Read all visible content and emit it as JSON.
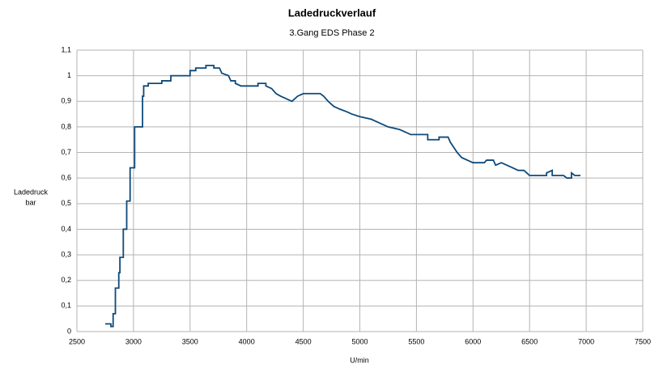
{
  "chart_data": {
    "type": "line",
    "title": "Ladedruckverlauf",
    "subtitle": "3.Gang EDS Phase 2",
    "xlabel": "U/min",
    "ylabel": [
      "Ladedruck",
      "bar"
    ],
    "x": [
      2750,
      2800,
      2800,
      2820,
      2820,
      2840,
      2840,
      2870,
      2870,
      2880,
      2880,
      2910,
      2910,
      2940,
      2940,
      2970,
      2970,
      3010,
      3010,
      3080,
      3080,
      3090,
      3090,
      3130,
      3130,
      3250,
      3250,
      3330,
      3330,
      3500,
      3500,
      3550,
      3550,
      3640,
      3640,
      3710,
      3710,
      3760,
      3780,
      3840,
      3860,
      3900,
      3900,
      3950,
      4100,
      4100,
      4170,
      4170,
      4220,
      4260,
      4300,
      4350,
      4400,
      4450,
      4500,
      4650,
      4680,
      4720,
      4770,
      4820,
      4880,
      4930,
      5000,
      5100,
      5150,
      5250,
      5350,
      5400,
      5450,
      5600,
      5600,
      5700,
      5700,
      5780,
      5800,
      5830,
      5860,
      5900,
      5950,
      6000,
      6100,
      6120,
      6180,
      6200,
      6250,
      6300,
      6400,
      6450,
      6500,
      6650,
      6650,
      6700,
      6700,
      6800,
      6830,
      6870,
      6870,
      6900,
      6950
    ],
    "values": [
      0.03,
      0.03,
      0.02,
      0.02,
      0.07,
      0.07,
      0.17,
      0.17,
      0.23,
      0.23,
      0.29,
      0.29,
      0.4,
      0.4,
      0.51,
      0.51,
      0.64,
      0.64,
      0.8,
      0.8,
      0.92,
      0.92,
      0.96,
      0.96,
      0.97,
      0.97,
      0.98,
      0.98,
      1.0,
      1.0,
      1.02,
      1.02,
      1.03,
      1.03,
      1.04,
      1.04,
      1.03,
      1.03,
      1.01,
      1.0,
      0.98,
      0.98,
      0.97,
      0.96,
      0.96,
      0.97,
      0.97,
      0.96,
      0.95,
      0.93,
      0.92,
      0.91,
      0.9,
      0.92,
      0.93,
      0.93,
      0.92,
      0.9,
      0.88,
      0.87,
      0.86,
      0.85,
      0.84,
      0.83,
      0.82,
      0.8,
      0.79,
      0.78,
      0.77,
      0.77,
      0.75,
      0.75,
      0.76,
      0.76,
      0.74,
      0.72,
      0.7,
      0.68,
      0.67,
      0.66,
      0.66,
      0.67,
      0.67,
      0.65,
      0.66,
      0.65,
      0.63,
      0.63,
      0.61,
      0.61,
      0.62,
      0.63,
      0.61,
      0.61,
      0.6,
      0.6,
      0.62,
      0.61,
      0.61
    ],
    "color": "#0e4a7b",
    "xlim": [
      2500,
      7500
    ],
    "xticks": [
      2500,
      3000,
      3500,
      4000,
      4500,
      5000,
      5500,
      6000,
      6500,
      7000,
      7500
    ],
    "ylim": [
      0,
      1.1
    ],
    "yticks": [
      0,
      {
        "value": 0.1,
        "label": "0,1"
      },
      {
        "value": 0.2,
        "label": "0,2"
      },
      {
        "value": 0.3,
        "label": "0,3"
      },
      {
        "value": 0.4,
        "label": "0,4"
      },
      {
        "value": 0.5,
        "label": "0,5"
      },
      {
        "value": 0.6,
        "label": "0,6"
      },
      {
        "value": 0.7,
        "label": "0,7"
      },
      {
        "value": 0.8,
        "label": "0,8"
      },
      {
        "value": 0.9,
        "label": "0,9"
      },
      1,
      {
        "value": 1.1,
        "label": "1,1"
      }
    ],
    "grid": true
  }
}
